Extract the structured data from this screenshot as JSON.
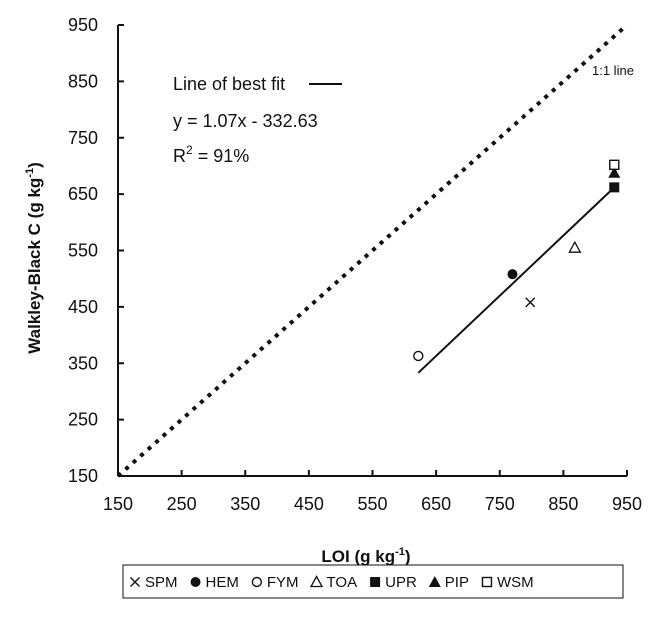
{
  "chart_data": {
    "type": "scatter",
    "title": "",
    "xlabel": "LOI",
    "xlabel_unit": "(g kg",
    "xlabel_sup": "-1",
    "xlabel_close": ")",
    "ylabel": "Walkley-Black C",
    "ylabel_unit": "(g kg",
    "ylabel_sup": "-1",
    "ylabel_close": ")",
    "xlim": [
      150,
      950
    ],
    "ylim": [
      150,
      950
    ],
    "xticks": [
      "150",
      "250",
      "350",
      "450",
      "550",
      "650",
      "750",
      "850",
      "950"
    ],
    "yticks": [
      "950",
      "850",
      "750",
      "650",
      "550",
      "450",
      "350",
      "250",
      "150"
    ],
    "grid": false,
    "legend_position": "bottom",
    "series": [
      {
        "name": "SPM",
        "marker": "x",
        "points": [
          [
            798,
            458
          ]
        ]
      },
      {
        "name": "HEM",
        "marker": "filled-circle",
        "points": [
          [
            770,
            508
          ]
        ]
      },
      {
        "name": "FYM",
        "marker": "open-circle",
        "points": [
          [
            622,
            363
          ]
        ]
      },
      {
        "name": "TOA",
        "marker": "open-triangle",
        "points": [
          [
            868,
            555
          ]
        ]
      },
      {
        "name": "UPR",
        "marker": "filled-square",
        "points": [
          [
            930,
            662
          ]
        ]
      },
      {
        "name": "PIP",
        "marker": "filled-triangle",
        "points": [
          [
            930,
            688
          ]
        ]
      },
      {
        "name": "WSM",
        "marker": "open-square",
        "points": [
          [
            930,
            702
          ]
        ]
      }
    ],
    "lines": {
      "one_to_one": {
        "label": "1:1 line",
        "style": "dotted",
        "x": [
          150,
          950
        ],
        "y": [
          150,
          950
        ]
      },
      "best_fit": {
        "label": "Line of best fit",
        "style": "solid",
        "x": [
          622,
          930
        ],
        "y": [
          333,
          662
        ]
      }
    },
    "annotations": {
      "fit_label": "Line of best fit",
      "equation": "y = 1.07x - 332.63",
      "r2_prefix": "R",
      "r2_sup": "2",
      "r2_value": " = 91%",
      "one_to_one_label": "1:1 line"
    },
    "colors": {
      "ink": "#111111",
      "background": "#ffffff"
    }
  }
}
